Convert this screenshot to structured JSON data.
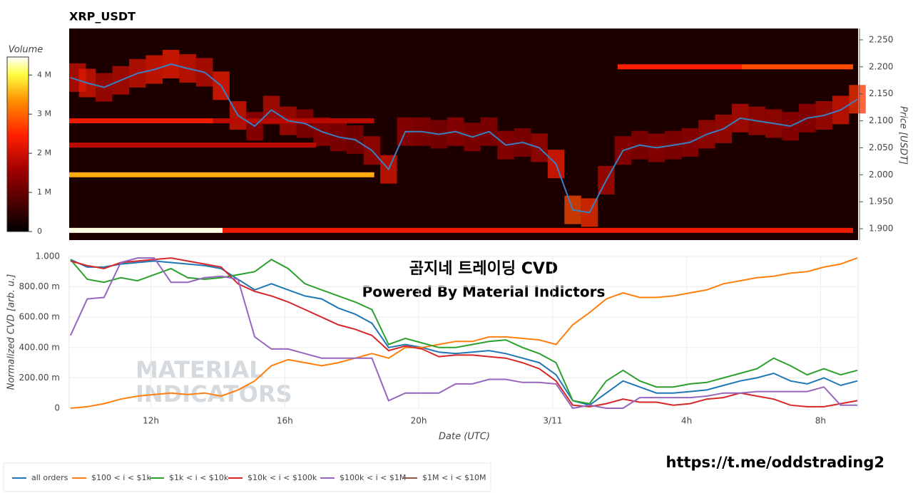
{
  "chart_data": [
    {
      "type": "heatmap",
      "title": "XRP_USDT",
      "y_label": "Price [USDT]",
      "x": [
        9.6,
        10.1,
        10.6,
        11.1,
        11.6,
        12.1,
        12.6,
        13.1,
        13.6,
        14.1,
        14.6,
        15.1,
        15.6,
        16.1,
        16.6,
        17.1,
        17.6,
        18.1,
        18.6,
        19.1,
        19.6,
        20.1,
        20.6,
        21.1,
        21.6,
        22.1,
        22.6,
        23.1,
        23.6,
        24.1,
        24.6,
        25.1,
        25.6,
        26.1,
        26.6,
        27.1,
        27.6,
        28.1,
        28.6,
        29.1,
        29.6,
        30.1,
        30.6,
        31.1,
        31.6,
        32.1,
        32.6,
        33.1
      ],
      "price": {
        "color": "#3a7fc1",
        "values": [
          2.18,
          2.17,
          2.162,
          2.175,
          2.188,
          2.195,
          2.205,
          2.197,
          2.19,
          2.165,
          2.11,
          2.09,
          2.12,
          2.1,
          2.095,
          2.08,
          2.07,
          2.065,
          2.045,
          2.01,
          2.08,
          2.08,
          2.075,
          2.08,
          2.07,
          2.08,
          2.055,
          2.06,
          2.05,
          2.02,
          1.935,
          1.93,
          1.99,
          2.045,
          2.055,
          2.05,
          2.055,
          2.06,
          2.075,
          2.085,
          2.105,
          2.1,
          2.095,
          2.09,
          2.105,
          2.11,
          2.12,
          2.14
        ]
      },
      "near_price_volume": [
        2000000,
        2200000,
        1800000,
        1900000,
        2100000,
        2300000,
        2400000,
        2200000,
        2000000,
        2400000,
        2200000,
        1600000,
        1900000,
        1800000,
        1500000,
        1600000,
        1500000,
        1400000,
        1700000,
        2200000,
        1600000,
        1500000,
        1400000,
        1600000,
        1500000,
        1500000,
        1600000,
        1500000,
        1700000,
        2400000,
        2800000,
        2600000,
        1800000,
        1600000,
        1500000,
        1600000,
        1500000,
        1600000,
        1700000,
        1800000,
        1900000,
        1700000,
        1700000,
        1600000,
        1600000,
        1800000,
        2200000,
        2600000
      ],
      "bands": [
        {
          "price": 1.897,
          "start": 9.56,
          "end": 14.14,
          "volume": 4400000
        },
        {
          "price": 1.897,
          "start": 14.14,
          "end": 32.97,
          "volume": 2300000
        },
        {
          "price": 2.0,
          "start": 9.56,
          "end": 18.67,
          "volume": 3500000
        },
        {
          "price": 2.055,
          "start": 9.56,
          "end": 16.93,
          "volume": 1800000
        },
        {
          "price": 2.1,
          "start": 9.56,
          "end": 13.86,
          "volume": 2300000
        },
        {
          "price": 2.1,
          "start": 13.86,
          "end": 18.67,
          "volume": 1800000
        },
        {
          "price": 2.2,
          "start": 25.94,
          "end": 29.64,
          "volume": 2400000
        },
        {
          "price": 2.2,
          "start": 29.64,
          "end": 32.97,
          "volume": 2800000
        }
      ],
      "xlim": [
        9.56,
        33.12
      ],
      "ylim": [
        1.879,
        2.271
      ],
      "yticks": [
        {
          "value": 1.9,
          "label": "1.900"
        },
        {
          "value": 1.95,
          "label": "1.950"
        },
        {
          "value": 2.0,
          "label": "2.000"
        },
        {
          "value": 2.05,
          "label": "2.050"
        },
        {
          "value": 2.1,
          "label": "2.100"
        },
        {
          "value": 2.15,
          "label": "2.150"
        },
        {
          "value": 2.2,
          "label": "2.200"
        },
        {
          "value": 2.25,
          "label": "2.250"
        }
      ],
      "colorbar": {
        "title": "Volume",
        "lim": [
          0,
          4460000
        ],
        "ticks": [
          0,
          {
            "value": 1000000,
            "label": "1 M"
          },
          {
            "value": 2000000,
            "label": "2 M"
          },
          {
            "value": 3000000,
            "label": "3 M"
          },
          {
            "value": 4000000,
            "label": "4 M"
          }
        ]
      }
    },
    {
      "type": "line",
      "y_label": "Normalized CVD [arb. u.]",
      "x_label": "Date (UTC)",
      "x": [
        9.6,
        10.1,
        10.6,
        11.1,
        11.6,
        12.1,
        12.6,
        13.1,
        13.6,
        14.1,
        14.6,
        15.1,
        15.6,
        16.1,
        16.6,
        17.1,
        17.6,
        18.1,
        18.6,
        19.1,
        19.6,
        20.1,
        20.6,
        21.1,
        21.6,
        22.1,
        22.6,
        23.1,
        23.6,
        24.1,
        24.6,
        25.1,
        25.6,
        26.1,
        26.6,
        27.1,
        27.6,
        28.1,
        28.6,
        29.1,
        29.6,
        30.1,
        30.6,
        31.1,
        31.6,
        32.1,
        32.6,
        33.1
      ],
      "series": [
        {
          "name": "all orders",
          "color": "#1f77b4",
          "values": [
            0.98,
            0.93,
            0.93,
            0.95,
            0.96,
            0.97,
            0.96,
            0.95,
            0.94,
            0.92,
            0.85,
            0.78,
            0.82,
            0.78,
            0.74,
            0.72,
            0.66,
            0.62,
            0.56,
            0.4,
            0.42,
            0.4,
            0.37,
            0.36,
            0.37,
            0.38,
            0.36,
            0.33,
            0.3,
            0.22,
            0.05,
            0.02,
            0.1,
            0.18,
            0.14,
            0.1,
            0.1,
            0.11,
            0.12,
            0.15,
            0.18,
            0.2,
            0.23,
            0.18,
            0.16,
            0.2,
            0.15,
            0.18
          ]
        },
        {
          "name": "$100 < i < $1k",
          "color": "#ff7f0e",
          "values": [
            0.0,
            0.01,
            0.03,
            0.06,
            0.08,
            0.09,
            0.1,
            0.09,
            0.1,
            0.08,
            0.12,
            0.18,
            0.28,
            0.32,
            0.3,
            0.28,
            0.3,
            0.33,
            0.36,
            0.33,
            0.4,
            0.4,
            0.42,
            0.44,
            0.44,
            0.47,
            0.47,
            0.46,
            0.45,
            0.42,
            0.55,
            0.63,
            0.72,
            0.76,
            0.73,
            0.73,
            0.74,
            0.76,
            0.78,
            0.82,
            0.84,
            0.86,
            0.87,
            0.89,
            0.9,
            0.93,
            0.95,
            0.99
          ]
        },
        {
          "name": "$1k < i < $10k",
          "color": "#2ca02c",
          "values": [
            0.98,
            0.85,
            0.83,
            0.86,
            0.84,
            0.88,
            0.92,
            0.86,
            0.85,
            0.86,
            0.88,
            0.9,
            0.98,
            0.92,
            0.82,
            0.78,
            0.74,
            0.7,
            0.65,
            0.42,
            0.46,
            0.43,
            0.4,
            0.4,
            0.42,
            0.44,
            0.45,
            0.4,
            0.36,
            0.3,
            0.05,
            0.03,
            0.18,
            0.25,
            0.18,
            0.14,
            0.14,
            0.16,
            0.17,
            0.2,
            0.23,
            0.26,
            0.33,
            0.28,
            0.22,
            0.26,
            0.22,
            0.25
          ]
        },
        {
          "name": "$10k < i < $100k",
          "color": "#d62728",
          "values": [
            0.97,
            0.94,
            0.92,
            0.96,
            0.97,
            0.98,
            0.99,
            0.97,
            0.95,
            0.93,
            0.82,
            0.77,
            0.74,
            0.7,
            0.65,
            0.6,
            0.55,
            0.52,
            0.48,
            0.38,
            0.41,
            0.39,
            0.34,
            0.35,
            0.35,
            0.34,
            0.33,
            0.3,
            0.26,
            0.18,
            0.02,
            0.01,
            0.03,
            0.06,
            0.04,
            0.04,
            0.02,
            0.03,
            0.06,
            0.07,
            0.1,
            0.08,
            0.06,
            0.02,
            0.01,
            0.01,
            0.03,
            0.05
          ]
        },
        {
          "name": "$100k < i < $1M",
          "color": "#9467bd",
          "values": [
            0.48,
            0.72,
            0.73,
            0.96,
            0.99,
            0.99,
            0.83,
            0.83,
            0.86,
            0.87,
            0.85,
            0.47,
            0.39,
            0.39,
            0.36,
            0.33,
            0.33,
            0.33,
            0.33,
            0.05,
            0.1,
            0.1,
            0.1,
            0.16,
            0.16,
            0.19,
            0.19,
            0.17,
            0.17,
            0.16,
            0.0,
            0.02,
            0.0,
            0.0,
            0.07,
            0.07,
            0.07,
            0.07,
            0.08,
            0.1,
            0.1,
            0.11,
            0.11,
            0.11,
            0.11,
            0.14,
            0.02,
            0.02
          ]
        },
        {
          "name": "$1M < i < $10M",
          "color": "#8c564b",
          "values": [
            null,
            null,
            null,
            null,
            null,
            null,
            null,
            null,
            null,
            null,
            null,
            null,
            null,
            null,
            null,
            null,
            null,
            null,
            null,
            null,
            null,
            null,
            null,
            null,
            null,
            null,
            null,
            null,
            null,
            null,
            null,
            null,
            null,
            null,
            null,
            null,
            null,
            null,
            null,
            null,
            null,
            null,
            null,
            null,
            null,
            null,
            null,
            null
          ]
        }
      ],
      "xlim": [
        9.56,
        33.12
      ],
      "ylim": [
        0,
        1
      ],
      "xticks": [
        {
          "value": 12,
          "label": "12h"
        },
        {
          "value": 16,
          "label": "16h"
        },
        {
          "value": 20,
          "label": "20h"
        },
        {
          "value": 24,
          "label": "3/11"
        },
        {
          "value": 28,
          "label": "4h"
        },
        {
          "value": 32,
          "label": "8h"
        }
      ],
      "yticks": [
        0,
        {
          "value": 0.2,
          "label": "200.00 m"
        },
        {
          "value": 0.4,
          "label": "400.00 m"
        },
        {
          "value": 0.6,
          "label": "600.00 m"
        },
        {
          "value": 0.8,
          "label": "800.00 m"
        },
        {
          "value": 1,
          "label": "1.000"
        }
      ],
      "grid": true,
      "legend": "bottom-left"
    }
  ],
  "overlay": [
    "곰지네 트레이딩 CVD",
    "Powered By Material Indictors"
  ],
  "watermark": [
    "MATERIAL",
    "INDICATORS"
  ],
  "link": "https://t.me/oddstrading2"
}
